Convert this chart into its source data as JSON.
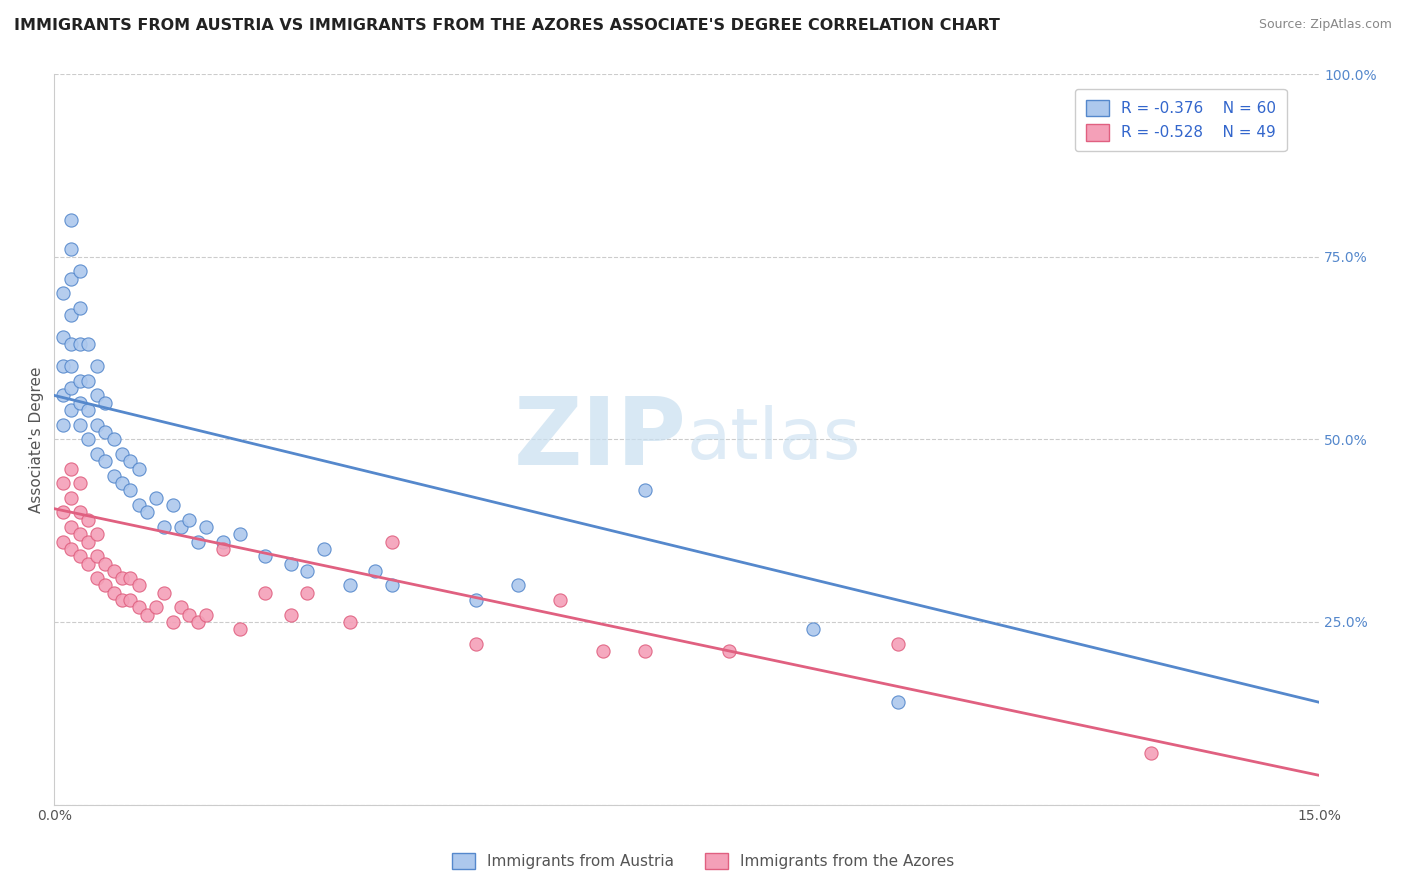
{
  "title": "IMMIGRANTS FROM AUSTRIA VS IMMIGRANTS FROM THE AZORES ASSOCIATE'S DEGREE CORRELATION CHART",
  "source": "Source: ZipAtlas.com",
  "ylabel": "Associate's Degree",
  "xlim": [
    0.0,
    0.15
  ],
  "ylim": [
    0.0,
    1.0
  ],
  "yticks": [
    0.0,
    0.25,
    0.5,
    0.75,
    1.0
  ],
  "yticklabels_right": [
    "",
    "25.0%",
    "50.0%",
    "75.0%",
    "100.0%"
  ],
  "austria_color": "#adc8ed",
  "azores_color": "#f4a0b8",
  "austria_line_color": "#5588cc",
  "azores_line_color": "#e06080",
  "legend_r_austria": "R = -0.376",
  "legend_n_austria": "N = 60",
  "legend_r_azores": "R = -0.528",
  "legend_n_azores": "N = 49",
  "austria_label": "Immigrants from Austria",
  "azores_label": "Immigrants from the Azores",
  "austria_scatter_x": [
    0.001,
    0.001,
    0.001,
    0.001,
    0.001,
    0.002,
    0.002,
    0.002,
    0.002,
    0.002,
    0.002,
    0.002,
    0.002,
    0.003,
    0.003,
    0.003,
    0.003,
    0.003,
    0.003,
    0.004,
    0.004,
    0.004,
    0.004,
    0.005,
    0.005,
    0.005,
    0.005,
    0.006,
    0.006,
    0.006,
    0.007,
    0.007,
    0.008,
    0.008,
    0.009,
    0.009,
    0.01,
    0.01,
    0.011,
    0.012,
    0.013,
    0.014,
    0.015,
    0.016,
    0.017,
    0.018,
    0.02,
    0.022,
    0.025,
    0.028,
    0.03,
    0.032,
    0.035,
    0.038,
    0.04,
    0.05,
    0.055,
    0.07,
    0.09,
    0.1
  ],
  "austria_scatter_y": [
    0.52,
    0.56,
    0.6,
    0.64,
    0.7,
    0.54,
    0.57,
    0.6,
    0.63,
    0.67,
    0.72,
    0.76,
    0.8,
    0.52,
    0.55,
    0.58,
    0.63,
    0.68,
    0.73,
    0.5,
    0.54,
    0.58,
    0.63,
    0.48,
    0.52,
    0.56,
    0.6,
    0.47,
    0.51,
    0.55,
    0.45,
    0.5,
    0.44,
    0.48,
    0.43,
    0.47,
    0.41,
    0.46,
    0.4,
    0.42,
    0.38,
    0.41,
    0.38,
    0.39,
    0.36,
    0.38,
    0.36,
    0.37,
    0.34,
    0.33,
    0.32,
    0.35,
    0.3,
    0.32,
    0.3,
    0.28,
    0.3,
    0.43,
    0.24,
    0.14
  ],
  "azores_scatter_x": [
    0.001,
    0.001,
    0.001,
    0.002,
    0.002,
    0.002,
    0.002,
    0.003,
    0.003,
    0.003,
    0.003,
    0.004,
    0.004,
    0.004,
    0.005,
    0.005,
    0.005,
    0.006,
    0.006,
    0.007,
    0.007,
    0.008,
    0.008,
    0.009,
    0.009,
    0.01,
    0.01,
    0.011,
    0.012,
    0.013,
    0.014,
    0.015,
    0.016,
    0.017,
    0.018,
    0.02,
    0.022,
    0.025,
    0.028,
    0.03,
    0.035,
    0.04,
    0.05,
    0.06,
    0.065,
    0.07,
    0.08,
    0.1,
    0.13
  ],
  "azores_scatter_y": [
    0.36,
    0.4,
    0.44,
    0.35,
    0.38,
    0.42,
    0.46,
    0.34,
    0.37,
    0.4,
    0.44,
    0.33,
    0.36,
    0.39,
    0.31,
    0.34,
    0.37,
    0.3,
    0.33,
    0.29,
    0.32,
    0.28,
    0.31,
    0.28,
    0.31,
    0.27,
    0.3,
    0.26,
    0.27,
    0.29,
    0.25,
    0.27,
    0.26,
    0.25,
    0.26,
    0.35,
    0.24,
    0.29,
    0.26,
    0.29,
    0.25,
    0.36,
    0.22,
    0.28,
    0.21,
    0.21,
    0.21,
    0.22,
    0.07
  ],
  "austria_line_x": [
    0.0,
    0.15
  ],
  "austria_line_y": [
    0.56,
    0.14
  ],
  "azores_line_x": [
    0.0,
    0.15
  ],
  "azores_line_y": [
    0.405,
    0.04
  ],
  "grid_color": "#cccccc",
  "background_color": "#ffffff",
  "title_fontsize": 11.5,
  "axis_label_fontsize": 11,
  "tick_fontsize": 10,
  "tick_color": "#5588cc"
}
